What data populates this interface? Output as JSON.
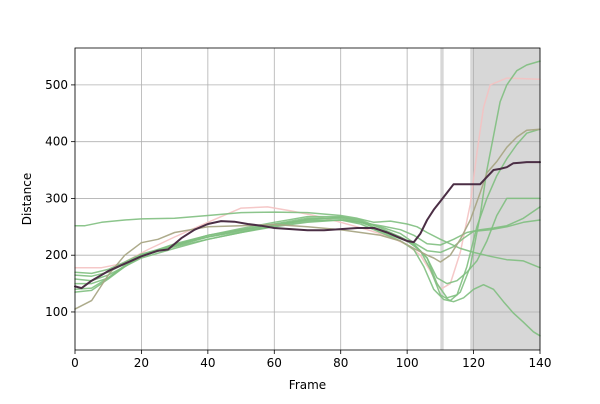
{
  "chart_data": {
    "type": "line",
    "title": "",
    "xlabel": "Frame",
    "ylabel": "Distance",
    "xlim": [
      0,
      140
    ],
    "ylim": [
      33,
      565
    ],
    "xticks": [
      0,
      20,
      40,
      60,
      80,
      100,
      120,
      140
    ],
    "yticks": [
      100,
      200,
      300,
      400,
      500
    ],
    "grid": true,
    "shaded_regions": [
      {
        "x0": 110,
        "x1": 111,
        "color": "#d3d3d3"
      },
      {
        "x0": 119,
        "x1": 140,
        "color": "#d3d3d3"
      }
    ],
    "series": [
      {
        "color": "#f4c2c2",
        "width": 1.5,
        "opacity": 0.9,
        "points": [
          [
            0,
            178
          ],
          [
            8,
            178
          ],
          [
            14,
            185
          ],
          [
            22,
            210
          ],
          [
            30,
            232
          ],
          [
            40,
            258
          ],
          [
            50,
            283
          ],
          [
            58,
            285
          ],
          [
            65,
            278
          ],
          [
            72,
            270
          ],
          [
            80,
            258
          ],
          [
            88,
            245
          ],
          [
            95,
            232
          ],
          [
            100,
            218
          ],
          [
            104,
            200
          ],
          [
            107,
            172
          ],
          [
            110,
            140
          ],
          [
            113,
            150
          ],
          [
            116,
            205
          ],
          [
            119,
            290
          ],
          [
            121,
            380
          ],
          [
            123,
            460
          ],
          [
            125,
            500
          ],
          [
            130,
            512
          ],
          [
            140,
            510
          ]
        ]
      },
      {
        "color": "#7fbf7f",
        "width": 1.5,
        "opacity": 0.9,
        "points": [
          [
            0,
            252
          ],
          [
            3,
            252
          ],
          [
            8,
            258
          ],
          [
            15,
            262
          ],
          [
            20,
            264
          ],
          [
            30,
            265
          ],
          [
            40,
            270
          ],
          [
            50,
            275
          ],
          [
            60,
            276
          ],
          [
            70,
            275
          ],
          [
            80,
            270
          ],
          [
            85,
            265
          ],
          [
            90,
            258
          ],
          [
            95,
            260
          ],
          [
            100,
            255
          ],
          [
            103,
            250
          ],
          [
            106,
            240
          ],
          [
            110,
            228
          ],
          [
            116,
            212
          ],
          [
            120,
            205
          ],
          [
            125,
            198
          ],
          [
            130,
            192
          ],
          [
            135,
            190
          ],
          [
            140,
            178
          ]
        ]
      },
      {
        "color": "#7fbf7f",
        "width": 1.5,
        "opacity": 0.9,
        "points": [
          [
            0,
            158
          ],
          [
            5,
            155
          ],
          [
            10,
            165
          ],
          [
            15,
            180
          ],
          [
            20,
            195
          ],
          [
            30,
            212
          ],
          [
            40,
            228
          ],
          [
            50,
            240
          ],
          [
            60,
            252
          ],
          [
            70,
            263
          ],
          [
            80,
            267
          ],
          [
            86,
            260
          ],
          [
            90,
            248
          ],
          [
            95,
            235
          ],
          [
            100,
            225
          ],
          [
            104,
            208
          ],
          [
            107,
            175
          ],
          [
            110,
            130
          ],
          [
            113,
            120
          ],
          [
            116,
            135
          ],
          [
            119,
            180
          ],
          [
            122,
            270
          ],
          [
            124,
            350
          ],
          [
            126,
            410
          ],
          [
            128,
            470
          ],
          [
            130,
            500
          ],
          [
            133,
            525
          ],
          [
            136,
            535
          ],
          [
            140,
            542
          ]
        ]
      },
      {
        "color": "#7fbf7f",
        "width": 1.5,
        "opacity": 0.9,
        "points": [
          [
            0,
            150
          ],
          [
            5,
            150
          ],
          [
            10,
            160
          ],
          [
            15,
            180
          ],
          [
            20,
            200
          ],
          [
            30,
            220
          ],
          [
            40,
            235
          ],
          [
            50,
            245
          ],
          [
            60,
            255
          ],
          [
            70,
            265
          ],
          [
            80,
            265
          ],
          [
            86,
            258
          ],
          [
            92,
            245
          ],
          [
            98,
            232
          ],
          [
            102,
            220
          ],
          [
            106,
            195
          ],
          [
            109,
            160
          ],
          [
            112,
            150
          ],
          [
            115,
            155
          ],
          [
            118,
            170
          ],
          [
            121,
            190
          ],
          [
            124,
            225
          ],
          [
            127,
            270
          ],
          [
            130,
            300
          ],
          [
            140,
            300
          ]
        ]
      },
      {
        "color": "#7fbf7f",
        "width": 1.5,
        "opacity": 0.9,
        "points": [
          [
            0,
            135
          ],
          [
            5,
            138
          ],
          [
            10,
            158
          ],
          [
            15,
            180
          ],
          [
            20,
            198
          ],
          [
            30,
            216
          ],
          [
            40,
            232
          ],
          [
            50,
            244
          ],
          [
            60,
            254
          ],
          [
            70,
            262
          ],
          [
            80,
            262
          ],
          [
            86,
            255
          ],
          [
            92,
            240
          ],
          [
            98,
            225
          ],
          [
            102,
            210
          ],
          [
            105,
            180
          ],
          [
            108,
            140
          ],
          [
            111,
            122
          ],
          [
            114,
            118
          ],
          [
            117,
            125
          ],
          [
            120,
            140
          ],
          [
            123,
            148
          ],
          [
            126,
            140
          ],
          [
            129,
            118
          ],
          [
            132,
            98
          ],
          [
            135,
            82
          ],
          [
            138,
            65
          ],
          [
            140,
            58
          ]
        ]
      },
      {
        "color": "#7fbf7f",
        "width": 1.5,
        "opacity": 0.9,
        "points": [
          [
            0,
            140
          ],
          [
            5,
            142
          ],
          [
            10,
            160
          ],
          [
            15,
            182
          ],
          [
            20,
            200
          ],
          [
            30,
            218
          ],
          [
            40,
            235
          ],
          [
            50,
            247
          ],
          [
            60,
            258
          ],
          [
            70,
            268
          ],
          [
            80,
            268
          ],
          [
            86,
            262
          ],
          [
            92,
            248
          ],
          [
            98,
            232
          ],
          [
            102,
            218
          ],
          [
            106,
            195
          ],
          [
            109,
            150
          ],
          [
            112,
            125
          ],
          [
            115,
            130
          ],
          [
            118,
            180
          ],
          [
            121,
            250
          ],
          [
            124,
            300
          ],
          [
            127,
            340
          ],
          [
            130,
            370
          ],
          [
            133,
            395
          ],
          [
            136,
            415
          ],
          [
            140,
            422
          ]
        ]
      },
      {
        "color": "#7fbf7f",
        "width": 1.5,
        "opacity": 0.9,
        "points": [
          [
            0,
            165
          ],
          [
            5,
            163
          ],
          [
            10,
            170
          ],
          [
            15,
            185
          ],
          [
            20,
            200
          ],
          [
            30,
            215
          ],
          [
            40,
            228
          ],
          [
            50,
            240
          ],
          [
            60,
            250
          ],
          [
            70,
            258
          ],
          [
            80,
            262
          ],
          [
            86,
            258
          ],
          [
            92,
            250
          ],
          [
            98,
            238
          ],
          [
            102,
            222
          ],
          [
            106,
            208
          ],
          [
            110,
            205
          ],
          [
            114,
            215
          ],
          [
            117,
            230
          ],
          [
            120,
            242
          ],
          [
            125,
            245
          ],
          [
            130,
            250
          ],
          [
            135,
            258
          ],
          [
            140,
            262
          ]
        ]
      },
      {
        "color": "#7fbf7f",
        "width": 1.5,
        "opacity": 0.9,
        "points": [
          [
            0,
            170
          ],
          [
            5,
            168
          ],
          [
            10,
            175
          ],
          [
            15,
            188
          ],
          [
            20,
            202
          ],
          [
            30,
            218
          ],
          [
            40,
            232
          ],
          [
            50,
            242
          ],
          [
            60,
            252
          ],
          [
            70,
            260
          ],
          [
            80,
            262
          ],
          [
            86,
            258
          ],
          [
            92,
            252
          ],
          [
            98,
            245
          ],
          [
            102,
            235
          ],
          [
            106,
            220
          ],
          [
            110,
            218
          ],
          [
            114,
            228
          ],
          [
            118,
            240
          ],
          [
            122,
            245
          ],
          [
            126,
            248
          ],
          [
            130,
            252
          ],
          [
            135,
            265
          ],
          [
            140,
            285
          ]
        ]
      },
      {
        "color": "#a9a685",
        "width": 1.5,
        "opacity": 0.95,
        "points": [
          [
            0,
            105
          ],
          [
            5,
            120
          ],
          [
            10,
            165
          ],
          [
            15,
            200
          ],
          [
            20,
            222
          ],
          [
            25,
            228
          ],
          [
            30,
            240
          ],
          [
            40,
            250
          ],
          [
            50,
            252
          ],
          [
            60,
            254
          ],
          [
            70,
            250
          ],
          [
            80,
            245
          ],
          [
            86,
            240
          ],
          [
            92,
            235
          ],
          [
            98,
            225
          ],
          [
            102,
            212
          ],
          [
            106,
            200
          ],
          [
            108,
            195
          ],
          [
            110,
            188
          ],
          [
            113,
            200
          ],
          [
            116,
            228
          ],
          [
            119,
            262
          ],
          [
            122,
            310
          ],
          [
            124,
            345
          ],
          [
            127,
            365
          ],
          [
            130,
            390
          ],
          [
            133,
            408
          ],
          [
            136,
            420
          ],
          [
            140,
            422
          ]
        ]
      },
      {
        "color": "#4b2e45",
        "width": 2.0,
        "opacity": 1.0,
        "points": [
          [
            0,
            145
          ],
          [
            2,
            142
          ],
          [
            5,
            155
          ],
          [
            10,
            172
          ],
          [
            15,
            185
          ],
          [
            20,
            198
          ],
          [
            25,
            208
          ],
          [
            28,
            210
          ],
          [
            32,
            230
          ],
          [
            36,
            245
          ],
          [
            40,
            255
          ],
          [
            44,
            260
          ],
          [
            48,
            259
          ],
          [
            52,
            255
          ],
          [
            56,
            252
          ],
          [
            60,
            248
          ],
          [
            65,
            246
          ],
          [
            70,
            244
          ],
          [
            75,
            244
          ],
          [
            80,
            246
          ],
          [
            85,
            248
          ],
          [
            90,
            248
          ],
          [
            94,
            240
          ],
          [
            98,
            230
          ],
          [
            100,
            225
          ],
          [
            102,
            223
          ],
          [
            104,
            238
          ],
          [
            106,
            262
          ],
          [
            108,
            280
          ],
          [
            110,
            295
          ],
          [
            112,
            310
          ],
          [
            114,
            325
          ],
          [
            116,
            325
          ],
          [
            118,
            325
          ],
          [
            120,
            325
          ],
          [
            122,
            325
          ],
          [
            124,
            338
          ],
          [
            126,
            350
          ],
          [
            128,
            352
          ],
          [
            130,
            355
          ],
          [
            132,
            362
          ],
          [
            134,
            363
          ],
          [
            136,
            364
          ],
          [
            140,
            364
          ]
        ]
      }
    ]
  }
}
